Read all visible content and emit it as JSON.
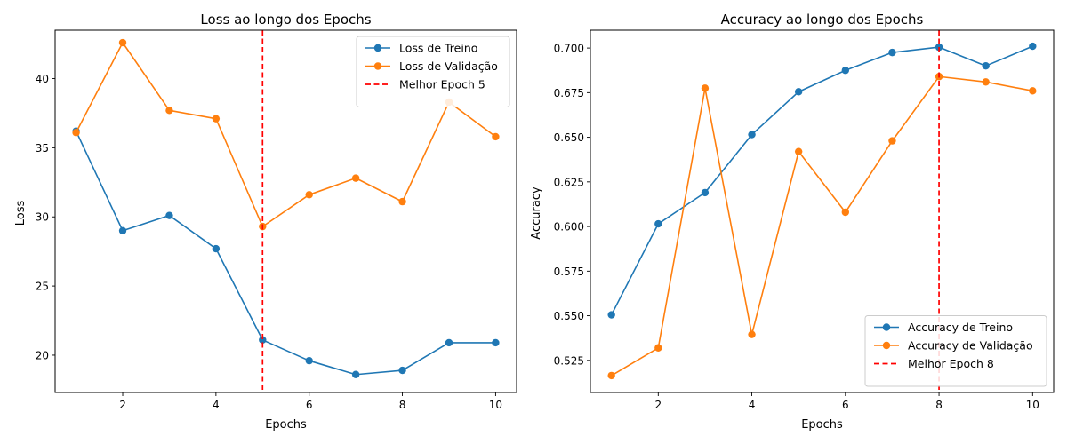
{
  "chart_data": [
    {
      "type": "line",
      "title": "Loss ao longo dos Epochs",
      "xlabel": "Epochs",
      "ylabel": "Loss",
      "x": [
        1,
        2,
        3,
        4,
        5,
        6,
        7,
        8,
        9,
        10
      ],
      "xlim": [
        0.55,
        10.45
      ],
      "ylim": [
        17.3,
        43.5
      ],
      "xticks": [
        2,
        4,
        6,
        8,
        10
      ],
      "yticks": [
        20,
        25,
        30,
        35,
        40
      ],
      "ytick_decimals": 0,
      "series": [
        {
          "name": "Loss de Treino",
          "color": "#1f77b4",
          "values": [
            36.2,
            29.0,
            30.1,
            27.7,
            21.1,
            19.6,
            18.6,
            18.9,
            20.9,
            20.9
          ]
        },
        {
          "name": "Loss de Validação",
          "color": "#ff7f0e",
          "values": [
            36.1,
            42.6,
            37.7,
            37.1,
            29.3,
            31.6,
            32.8,
            31.1,
            38.3,
            35.8
          ]
        }
      ],
      "vline": {
        "x": 5,
        "name": "Melhor Epoch 5",
        "color": "#ff0000"
      },
      "legend": "top-right",
      "grid": false
    },
    {
      "type": "line",
      "title": "Accuracy ao longo dos Epochs",
      "xlabel": "Epochs",
      "ylabel": "Accuracy",
      "x": [
        1,
        2,
        3,
        4,
        5,
        6,
        7,
        8,
        9,
        10
      ],
      "xlim": [
        0.55,
        10.45
      ],
      "ylim": [
        0.507,
        0.71
      ],
      "xticks": [
        2,
        4,
        6,
        8,
        10
      ],
      "yticks": [
        0.525,
        0.55,
        0.575,
        0.6,
        0.625,
        0.65,
        0.675,
        0.7
      ],
      "ytick_decimals": 3,
      "series": [
        {
          "name": "Accuracy de Treino",
          "color": "#1f77b4",
          "values": [
            0.5505,
            0.6015,
            0.619,
            0.6515,
            0.6755,
            0.6875,
            0.6975,
            0.7005,
            0.69,
            0.701
          ]
        },
        {
          "name": "Accuracy de Validação",
          "color": "#ff7f0e",
          "values": [
            0.5165,
            0.532,
            0.6775,
            0.5395,
            0.642,
            0.608,
            0.648,
            0.684,
            0.681,
            0.676
          ]
        }
      ],
      "vline": {
        "x": 8,
        "name": "Melhor Epoch 8",
        "color": "#ff0000"
      },
      "legend": "bottom-right",
      "grid": false
    }
  ]
}
